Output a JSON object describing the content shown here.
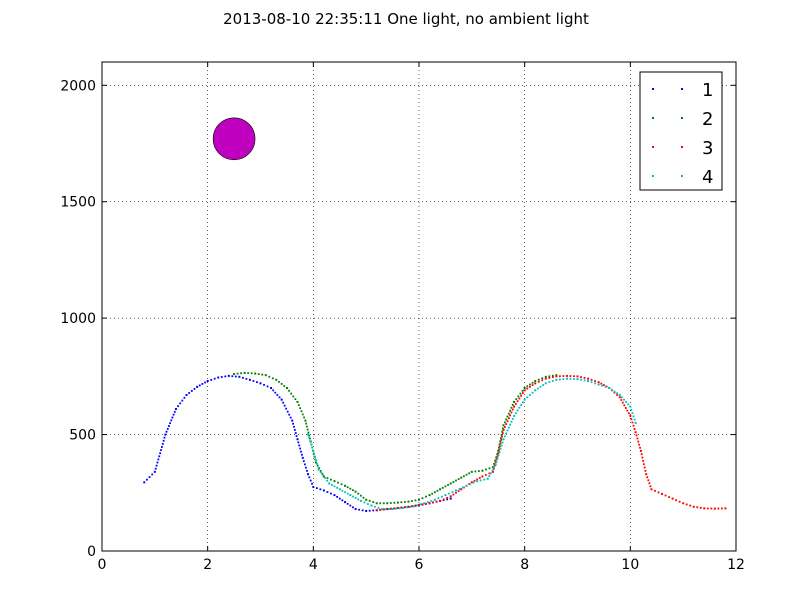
{
  "chart_data": {
    "type": "scatter",
    "title": "2013-08-10 22:35:11 One light, no ambient light",
    "xlabel": "",
    "ylabel": "",
    "xlim": [
      0,
      12
    ],
    "ylim": [
      0,
      2100
    ],
    "x_ticks": [
      0,
      2,
      4,
      6,
      8,
      10,
      12
    ],
    "y_ticks": [
      0,
      500,
      1000,
      1500,
      2000
    ],
    "grid": true,
    "legend": "top-right",
    "marker": {
      "x": 2.5,
      "y": 1770,
      "color": "#bf00bf",
      "shape": "circle"
    },
    "series": [
      {
        "name": "1",
        "color": "#0000ff",
        "x": [
          0.8,
          1.0,
          1.2,
          1.4,
          1.6,
          1.8,
          2.0,
          2.2,
          2.4,
          2.6,
          2.8,
          3.0,
          3.2,
          3.4,
          3.6,
          3.7,
          3.8,
          3.9,
          4.0,
          4.2,
          4.4,
          4.6,
          4.8,
          5.0,
          5.2,
          5.4,
          5.6,
          5.8,
          6.0,
          6.2,
          6.4,
          6.6
        ],
        "y": [
          295,
          340,
          500,
          610,
          670,
          705,
          730,
          745,
          752,
          748,
          735,
          720,
          700,
          650,
          560,
          480,
          400,
          330,
          275,
          260,
          240,
          210,
          180,
          172,
          175,
          180,
          185,
          190,
          196,
          205,
          215,
          225
        ]
      },
      {
        "name": "2",
        "color": "#008000",
        "x": [
          2.5,
          2.7,
          2.9,
          3.1,
          3.3,
          3.5,
          3.7,
          3.85,
          3.95,
          4.05,
          4.2,
          4.4,
          4.6,
          4.8,
          5.0,
          5.2,
          5.4,
          5.6,
          5.8,
          6.0,
          6.2,
          6.4,
          6.6,
          6.8,
          7.0,
          7.2,
          7.4,
          7.5,
          7.6,
          7.8,
          8.0,
          8.2,
          8.4,
          8.6
        ],
        "y": [
          760,
          765,
          762,
          755,
          735,
          700,
          640,
          560,
          470,
          380,
          320,
          300,
          280,
          255,
          220,
          205,
          205,
          208,
          212,
          220,
          240,
          265,
          290,
          315,
          340,
          345,
          360,
          430,
          540,
          640,
          700,
          730,
          748,
          755
        ]
      },
      {
        "name": "3",
        "color": "#ff0000",
        "x": [
          5.2,
          5.4,
          5.6,
          5.8,
          6.0,
          6.2,
          6.4,
          6.6,
          6.8,
          7.0,
          7.2,
          7.4,
          7.5,
          7.6,
          7.8,
          8.0,
          8.2,
          8.4,
          8.6,
          8.8,
          9.0,
          9.2,
          9.4,
          9.6,
          9.8,
          10.0,
          10.1,
          10.2,
          10.3,
          10.4,
          10.6,
          10.8,
          11.0,
          11.2,
          11.4,
          11.6,
          11.8
        ],
        "y": [
          175,
          180,
          185,
          190,
          198,
          205,
          215,
          235,
          265,
          295,
          320,
          340,
          420,
          520,
          620,
          690,
          720,
          740,
          750,
          752,
          750,
          740,
          725,
          700,
          660,
          580,
          510,
          430,
          330,
          265,
          245,
          225,
          205,
          190,
          183,
          182,
          183
        ]
      },
      {
        "name": "4",
        "color": "#00bfbf",
        "x": [
          3.9,
          4.0,
          4.1,
          4.3,
          4.5,
          4.7,
          4.9,
          5.1,
          5.3,
          5.5,
          5.7,
          5.9,
          6.1,
          6.3,
          6.5,
          6.7,
          6.9,
          7.1,
          7.3,
          7.45,
          7.6,
          7.8,
          8.0,
          8.2,
          8.4,
          8.6,
          8.8,
          9.0,
          9.2,
          9.4,
          9.6,
          9.8,
          10.0,
          10.1
        ],
        "y": [
          500,
          430,
          350,
          290,
          265,
          240,
          215,
          195,
          180,
          180,
          185,
          192,
          205,
          220,
          240,
          260,
          280,
          300,
          310,
          370,
          480,
          580,
          650,
          690,
          720,
          735,
          740,
          738,
          730,
          715,
          700,
          670,
          620,
          550
        ]
      }
    ]
  }
}
